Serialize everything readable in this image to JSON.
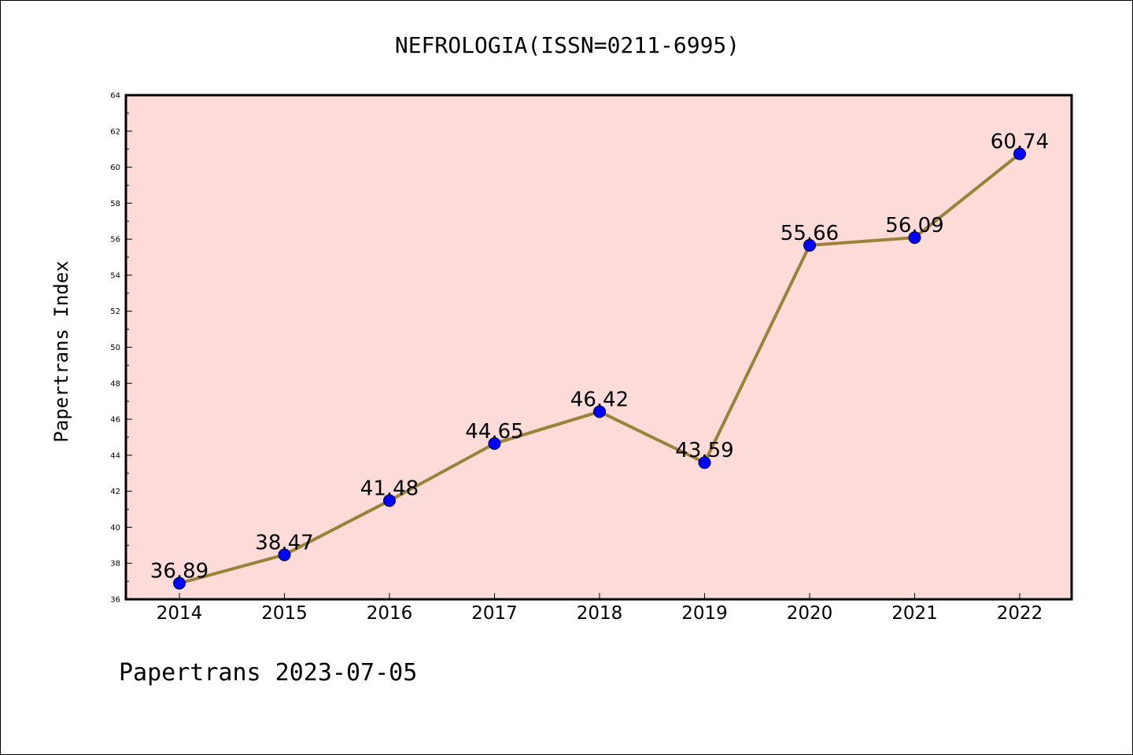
{
  "chart_data": {
    "type": "line",
    "title": "NEFROLOGIA(ISSN=0211-6995)",
    "xlabel": "",
    "ylabel": "Papertrans Index",
    "categories": [
      "2014",
      "2015",
      "2016",
      "2017",
      "2018",
      "2019",
      "2020",
      "2021",
      "2022"
    ],
    "series": [
      {
        "values": [
          36.89,
          38.47,
          41.48,
          44.65,
          46.42,
          43.59,
          55.66,
          56.09,
          60.74
        ],
        "labels": [
          "36.89",
          "38.47",
          "41.48",
          "44.65",
          "46.42",
          "43.59",
          "55.66",
          "56.09",
          "60.74"
        ]
      }
    ],
    "ylim": [
      36,
      64
    ],
    "yticks": [
      36,
      38,
      40,
      42,
      44,
      46,
      48,
      50,
      52,
      54,
      56,
      58,
      60,
      62,
      64
    ],
    "grid": false,
    "legend": "none",
    "colors": {
      "plot_background": "#fddbd9",
      "line": "#9b8239",
      "marker": "#0000ff"
    }
  },
  "footer": {
    "text": "Papertrans 2023-07-05"
  }
}
